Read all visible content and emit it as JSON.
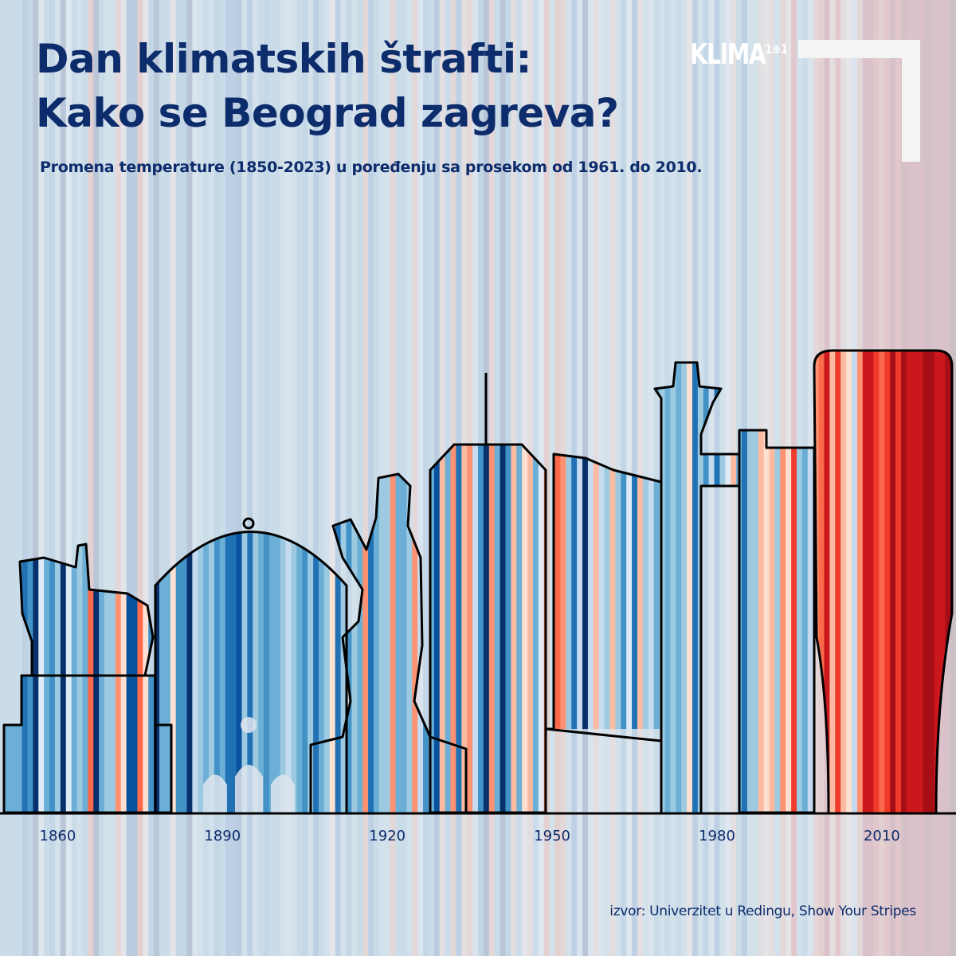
{
  "header": {
    "title_line1": "Dan klimatskih štrafti:",
    "title_line2": "Kako se Beograd zagreva?",
    "subtitle": "Promena temperature (1850-2023) u poređenju sa prosekom od 1961. do 2010.",
    "logo": "KLIMA101"
  },
  "footer": {
    "source": "izvor: Univerzitet u Redingu, Show Your Stripes"
  },
  "chart_data": {
    "type": "heatmap",
    "title": "Dan klimatskih štrafti: Kako se Beograd zagreva?",
    "subtitle": "Promena temperature (1850-2023) u poređenju sa prosekom od 1961. do 2010.",
    "x_start": 1850,
    "x_end": 2023,
    "x_ticks": [
      "1860",
      "1890",
      "1920",
      "1950",
      "1980",
      "2010"
    ],
    "color_scale": {
      "cold": "#08306b",
      "neutral": "#f7f7f7",
      "warm": "#67000d"
    },
    "values": [
      -0.5,
      -0.5,
      -0.5,
      -0.5,
      -1.2,
      -0.8,
      -2.2,
      0.0,
      -0.5,
      -0.8,
      -0.3,
      -2.2,
      0.0,
      -0.6,
      -0.3,
      -0.5,
      0.8,
      -2.2,
      -0.6,
      -0.3,
      -0.4,
      0.6,
      0.1,
      -2.0,
      -1.6,
      0.8,
      0.1,
      -1.0,
      -2.2,
      -0.6,
      -0.5,
      0.1,
      -1.0,
      -1.0,
      -2.2,
      -0.1,
      -0.4,
      -0.7,
      -0.3,
      -1.0,
      -0.7,
      -1.5,
      -1.2,
      -2.0,
      -0.4,
      -1.5,
      -0.4,
      -0.7,
      -1.0,
      -0.5,
      -0.7,
      -0.3,
      -0.1,
      -0.4,
      -0.7,
      -1.0,
      -0.3,
      -1.5,
      -0.7,
      -0.4,
      0.1,
      -1.5,
      -0.4,
      -1.0,
      -0.3,
      -0.7,
      0.6,
      -1.2,
      -0.7,
      -0.3,
      -0.4,
      0.6,
      -0.5,
      -0.7,
      -0.4,
      0.5,
      -0.2,
      -1.0,
      -0.5,
      -2.0,
      0.3,
      -0.7,
      0.5,
      -1.5,
      0.2,
      0.4,
      -0.1,
      -1.0,
      -2.2,
      0.6,
      -0.5,
      -2.5,
      -1.0,
      0.3,
      -0.7,
      0.1,
      0.3,
      -0.5,
      0.0,
      0.8,
      -0.3,
      0.8,
      0.6,
      -0.4,
      -1.5,
      -0.2,
      -2.2,
      -0.1,
      0.3,
      -0.2,
      -0.3,
      0.3,
      -0.4,
      -1.0,
      0.0,
      -1.2,
      0.2,
      -0.4,
      -0.2,
      -0.5,
      -0.3,
      -0.5,
      -0.3,
      -0.7,
      -0.4,
      0.1,
      -1.5,
      -0.3,
      -1.0,
      -0.1,
      -1.2,
      -0.3,
      0.0,
      0.2,
      -0.5,
      -1.5,
      -0.3,
      -0.4,
      0.3,
      0.1,
      0.2,
      -0.4,
      0.6,
      0.1,
      1.0,
      -0.3,
      -0.5,
      -0.2,
      0.5,
      0.8,
      1.4,
      0.3,
      1.1,
      0.2,
      0.1,
      -0.2,
      0.4,
      1.5,
      1.5,
      1.2,
      0.8,
      1.0,
      1.6,
      1.2,
      1.7,
      1.4,
      1.3,
      1.4,
      1.8,
      1.9,
      1.5,
      1.4,
      1.8,
      2.4
    ]
  }
}
